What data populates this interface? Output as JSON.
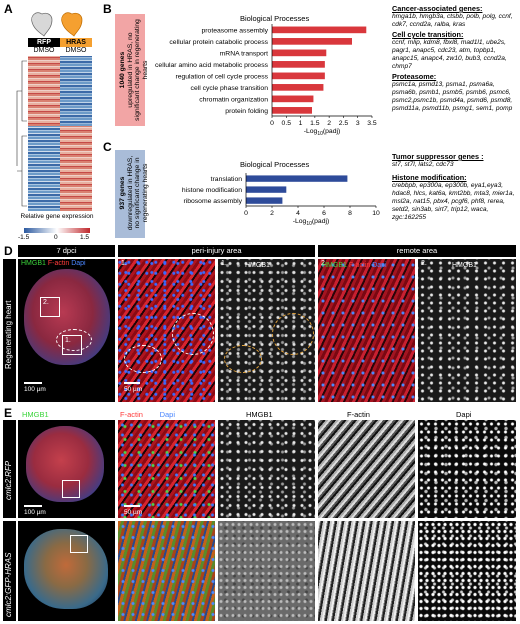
{
  "panel_labels": {
    "a": "A",
    "b": "B",
    "c": "C",
    "d": "D",
    "e": "E"
  },
  "panel_a": {
    "col1": "RFP",
    "col2": "HRAS",
    "cond1": "DMSO",
    "cond2": "DMSO",
    "legend_title": "Relative gene expression",
    "legend_ticks": [
      "-1.5",
      "0",
      "1.5"
    ]
  },
  "panel_b": {
    "box_text_bold": "1040 genes",
    "box_text": "upregulated in HRAS, no significant change in regenerating hearts",
    "chart_title": "Biological Processes",
    "gene_groups": [
      {
        "head": "Cancer-associated genes:",
        "list": "hmga1b, hmgb3a, ctsbb, polb, polg, ccnf, cdk7, ccnd2a, ralba, kras"
      },
      {
        "head": "Cell cycle transition:",
        "list": "ccnf, mlip, kdm8, fbxl8, mad1l1, ube2s, pagr1, anapc5, cdc23, atm, topbp1, anapc15, anapc4, zw10, bub3, ccnd2a, chmp7"
      },
      {
        "head": "Proteasome:",
        "list": "psmc1a, psmd13, psma1, psma6a, psma6b, psmb1, psmb5, psmb6, psmc6, psmc2,psmc1b, psmd4a, psmd6, psmd8, psmd11a, psmd11b, psmg1, sem1, pomp"
      }
    ]
  },
  "panel_c": {
    "box_text_bold": "937 genes",
    "box_text": "downregulated in HRAS, no significant change in regenerating hearts",
    "chart_title": "Biological Processes",
    "gene_groups": [
      {
        "head": "Tumor suppressor genes :",
        "list": "st7, st7l, lats2, cdc73"
      },
      {
        "head": "Histone modification:",
        "list": "crebbpb, ep300a, ep300b, eya1,eya3, hdac8, hlcs, kat6a, kmt2bb, mta3, mier1a, msl2a, nat15, pbx4, pcgf6, phf8, rerea, setd2, sin3ab, sirt7, trip12, waca, zgc:162255"
      }
    ]
  },
  "chart_data": [
    {
      "type": "bar",
      "orientation": "horizontal",
      "title": "Biological Processes",
      "categories": [
        "proteasome assembly",
        "cellular protein catabolic process",
        "mRNA transport",
        "cellular amino acid metabolic process",
        "regulation of cell cycle process",
        "cell cycle phase transition",
        "chromatin organization",
        "protein folding"
      ],
      "values": [
        3.3,
        2.8,
        1.9,
        1.85,
        1.85,
        1.8,
        1.45,
        1.4
      ],
      "xlim": [
        0,
        3.5
      ],
      "xticks": [
        "0",
        "0.5",
        "1",
        "1.5",
        "2",
        "2.5",
        "3",
        "3.5"
      ],
      "xlabel": "-Log10(padj)",
      "color": "#d9373c"
    },
    {
      "type": "bar",
      "orientation": "horizontal",
      "title": "Biological Processes",
      "categories": [
        "translation",
        "histone modification",
        "ribosome assembly"
      ],
      "values": [
        7.8,
        3.1,
        2.8
      ],
      "xlim": [
        0,
        10
      ],
      "xticks": [
        "0",
        "2",
        "4",
        "6",
        "8",
        "10"
      ],
      "xlabel": "-Log10(padj)",
      "color": "#2e4b9a"
    }
  ],
  "panel_d": {
    "headers": [
      "7 dpci",
      "peri-injury area",
      "remote area"
    ],
    "side_label": "Regenerating heart",
    "ch_hmgb1": "HMGB1",
    "ch_factin": "F-actin",
    "ch_dapi": "Dapi",
    "inset1": "1.",
    "inset2": "2.",
    "scale1": "100 µm",
    "scale2": "50 µm"
  },
  "panel_e": {
    "row1_label": "cmlc2:RFP",
    "row2_label": "cmlc2:GFP-HRAS",
    "ch_hmgb1": "HMGB1",
    "ch_factin": "F-actin",
    "ch_dapi": "Dapi",
    "scale1": "100 µm",
    "scale2": "50 µm"
  }
}
